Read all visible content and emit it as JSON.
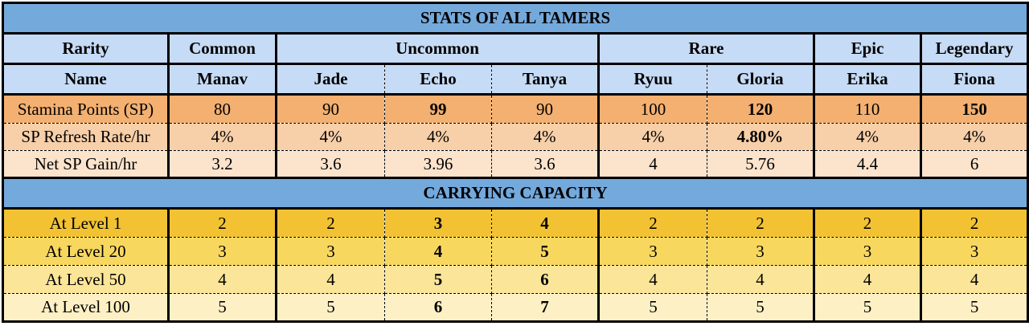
{
  "title": "STATS OF ALL TAMERS",
  "carrying_title": "CARRYING CAPACITY",
  "rarity_label": "Rarity",
  "name_label": "Name",
  "rarities": [
    "Common",
    "Uncommon",
    "Rare",
    "Epic",
    "Legendary"
  ],
  "names": [
    "Manav",
    "Jade",
    "Echo",
    "Tanya",
    "Ryuu",
    "Gloria",
    "Erika",
    "Fiona"
  ],
  "stats": [
    {
      "label": "Stamina Points (SP)",
      "values": [
        "80",
        "90",
        "99",
        "90",
        "100",
        "120",
        "110",
        "150"
      ],
      "bold": [
        false,
        false,
        true,
        false,
        false,
        true,
        false,
        true
      ]
    },
    {
      "label": "SP Refresh Rate/hr",
      "values": [
        "4%",
        "4%",
        "4%",
        "4%",
        "4%",
        "4.80%",
        "4%",
        "4%"
      ],
      "bold": [
        false,
        false,
        false,
        false,
        false,
        true,
        false,
        false
      ]
    },
    {
      "label": "Net SP Gain/hr",
      "values": [
        "3.2",
        "3.6",
        "3.96",
        "3.6",
        "4",
        "5.76",
        "4.4",
        "6"
      ],
      "bold": [
        false,
        false,
        false,
        false,
        false,
        false,
        false,
        false
      ]
    }
  ],
  "capacity": [
    {
      "label": "At Level 1",
      "values": [
        "2",
        "2",
        "3",
        "4",
        "2",
        "2",
        "2",
        "2"
      ],
      "bold": [
        false,
        false,
        true,
        true,
        false,
        false,
        false,
        false
      ]
    },
    {
      "label": "At Level 20",
      "values": [
        "3",
        "3",
        "4",
        "5",
        "3",
        "3",
        "3",
        "3"
      ],
      "bold": [
        false,
        false,
        true,
        true,
        false,
        false,
        false,
        false
      ]
    },
    {
      "label": "At Level 50",
      "values": [
        "4",
        "4",
        "5",
        "6",
        "4",
        "4",
        "4",
        "4"
      ],
      "bold": [
        false,
        false,
        true,
        true,
        false,
        false,
        false,
        false
      ]
    },
    {
      "label": "At Level 100",
      "values": [
        "5",
        "5",
        "6",
        "7",
        "5",
        "5",
        "5",
        "5"
      ],
      "bold": [
        false,
        false,
        true,
        true,
        false,
        false,
        false,
        false
      ]
    }
  ],
  "colors": {
    "band": "#74a9dc",
    "header": "#c6dbf5",
    "stamina": "#f3b070",
    "refresh": "#f7cfa8",
    "net": "#fbe3cc",
    "level1": "#f2c233",
    "level20": "#f8d75f",
    "level50": "#fbe598",
    "level100": "#fdf0c4"
  }
}
